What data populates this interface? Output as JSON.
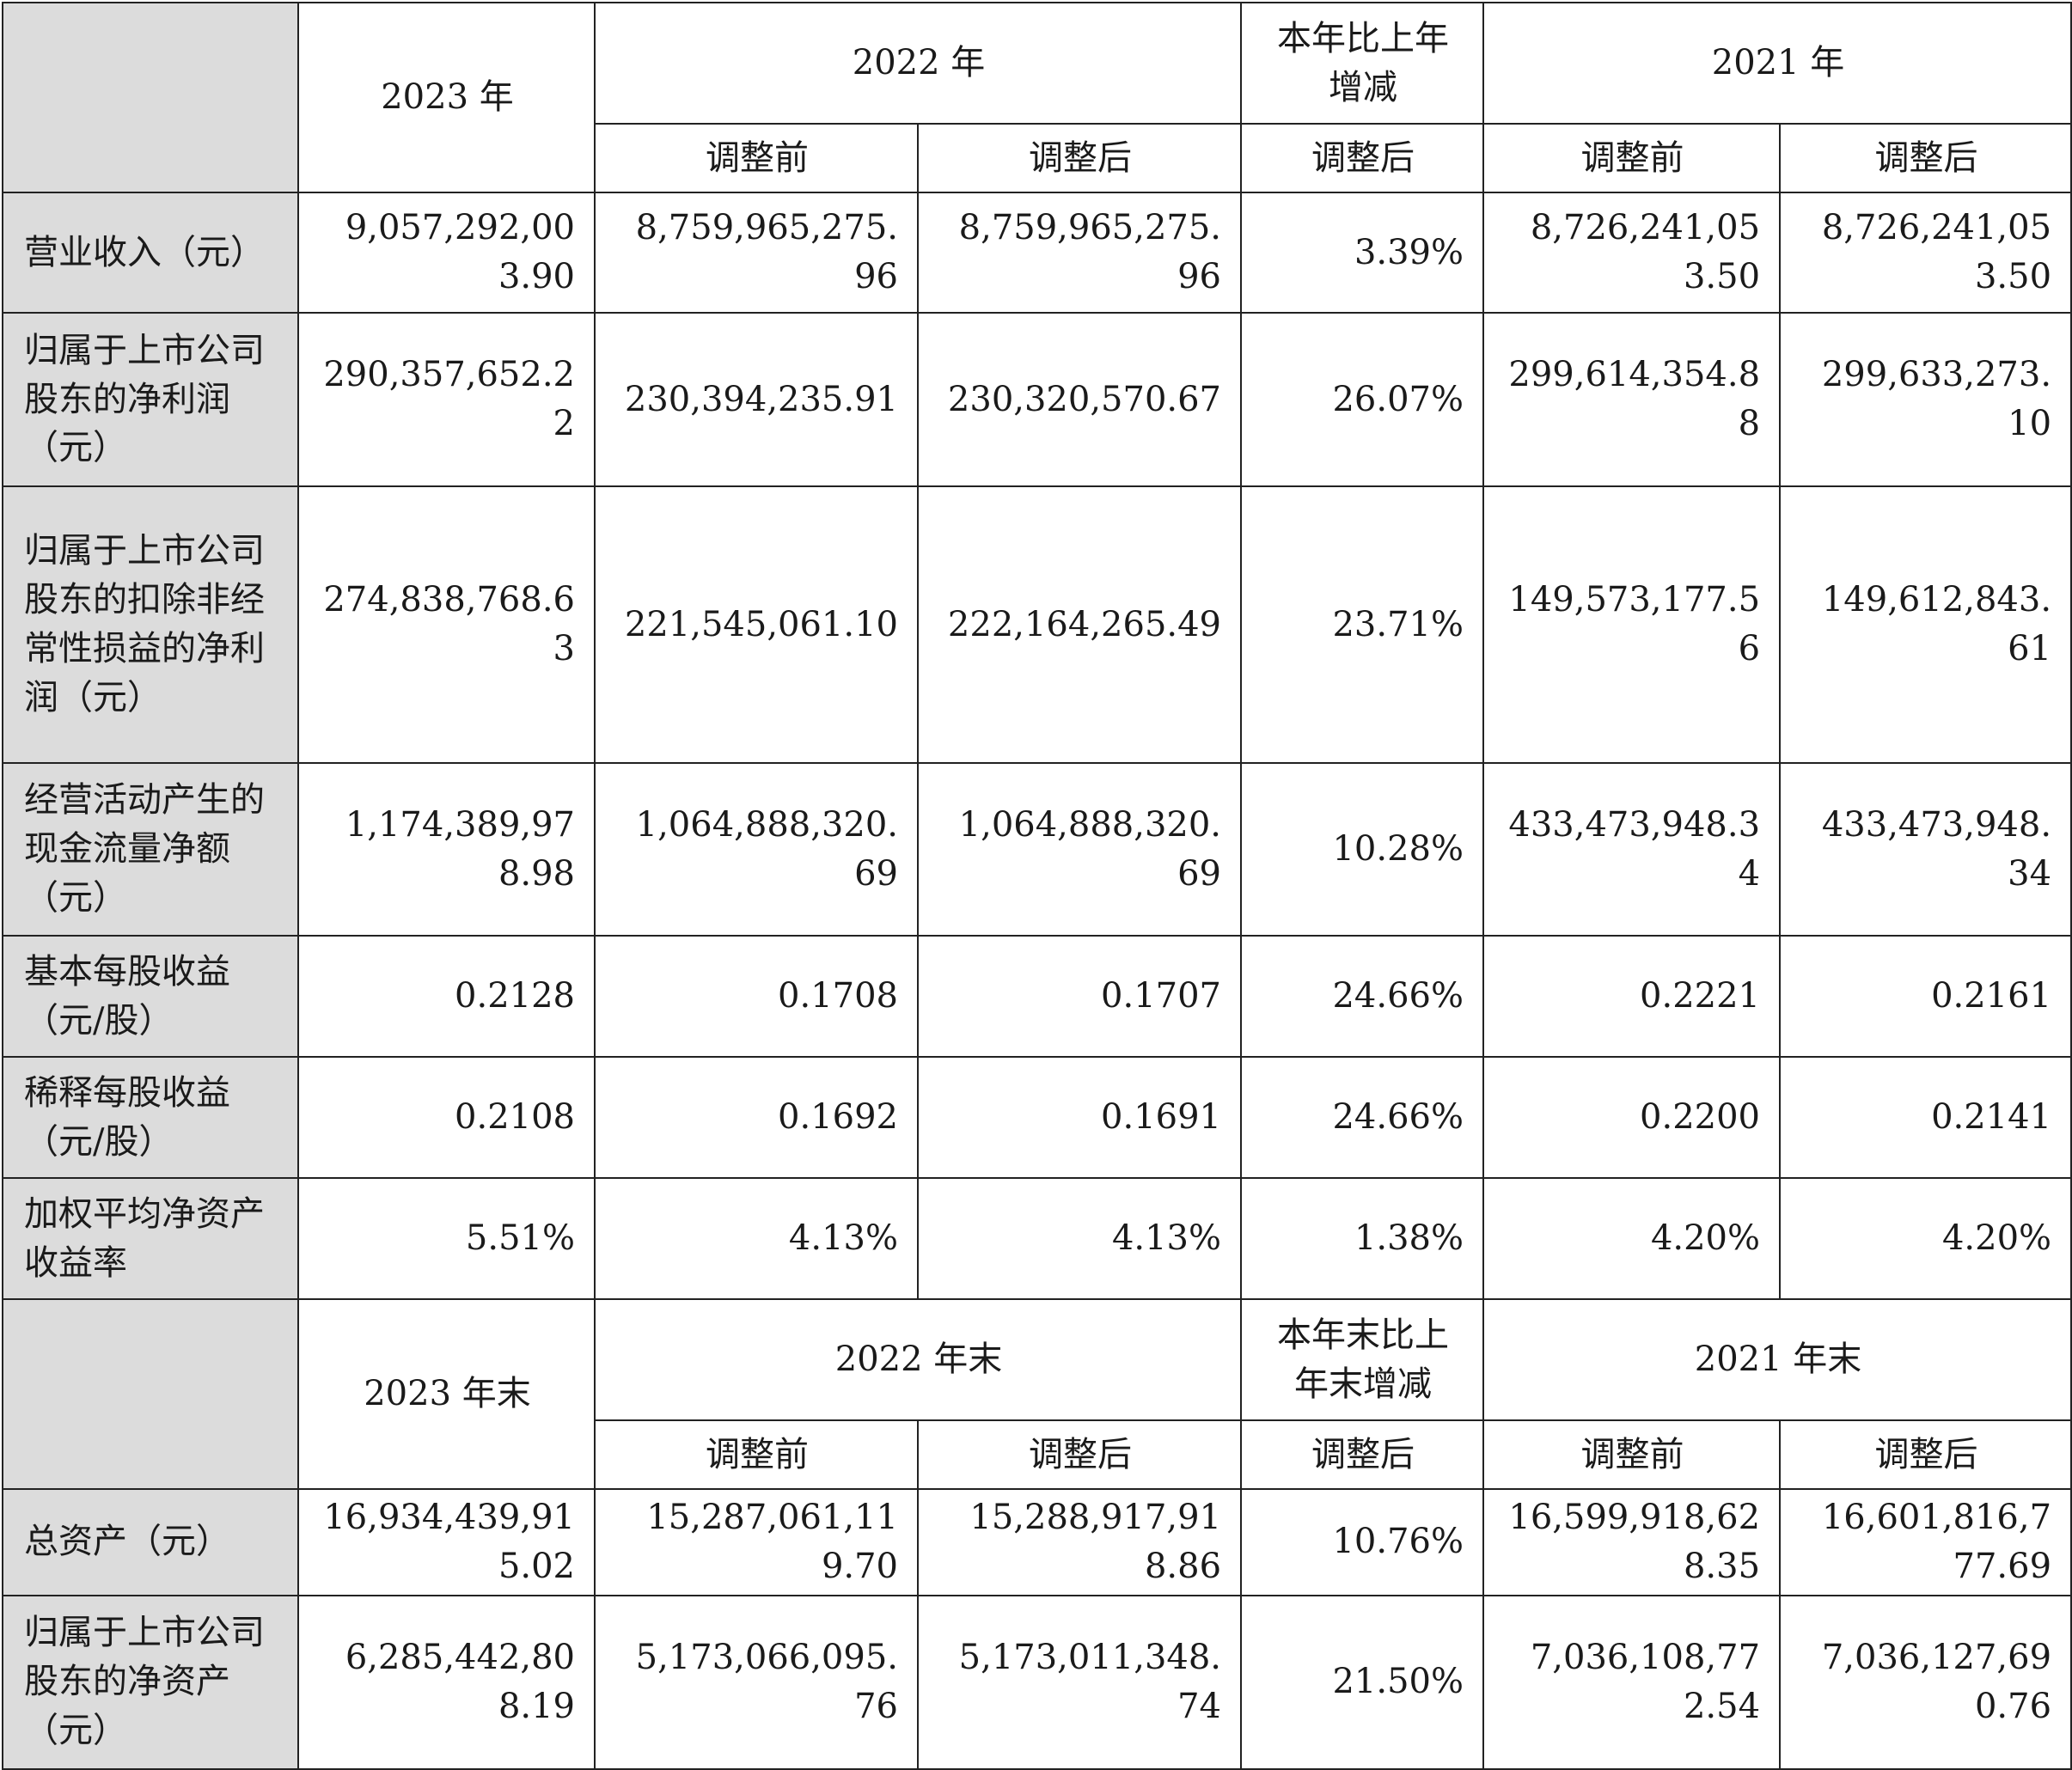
{
  "header1": {
    "y2023": "2023 年",
    "y2022": "2022 年",
    "change": "本年比上年增减",
    "y2021": "2021 年",
    "sub": [
      "调整前",
      "调整后",
      "调整后",
      "调整前",
      "调整后"
    ]
  },
  "rows1": [
    {
      "label": "营业收入（元）",
      "values": [
        "9,057,292,003.90",
        "8,759,965,275.96",
        "8,759,965,275.96",
        "3.39%",
        "8,726,241,053.50",
        "8,726,241,053.50"
      ]
    },
    {
      "label": "归属于上市公司股东的净利润（元）",
      "values": [
        "290,357,652.22",
        "230,394,235.91",
        "230,320,570.67",
        "26.07%",
        "299,614,354.88",
        "299,633,273.10"
      ]
    },
    {
      "label": "归属于上市公司股东的扣除非经常性损益的净利润（元）",
      "values": [
        "274,838,768.63",
        "221,545,061.10",
        "222,164,265.49",
        "23.71%",
        "149,573,177.56",
        "149,612,843.61"
      ]
    },
    {
      "label": "经营活动产生的现金流量净额（元）",
      "values": [
        "1,174,389,978.98",
        "1,064,888,320.69",
        "1,064,888,320.69",
        "10.28%",
        "433,473,948.34",
        "433,473,948.34"
      ]
    },
    {
      "label": "基本每股收益（元/股）",
      "values": [
        "0.2128",
        "0.1708",
        "0.1707",
        "24.66%",
        "0.2221",
        "0.2161"
      ]
    },
    {
      "label": "稀释每股收益（元/股）",
      "values": [
        "0.2108",
        "0.1692",
        "0.1691",
        "24.66%",
        "0.2200",
        "0.2141"
      ]
    },
    {
      "label": "加权平均净资产收益率",
      "values": [
        "5.51%",
        "4.13%",
        "4.13%",
        "1.38%",
        "4.20%",
        "4.20%"
      ]
    }
  ],
  "header2": {
    "y2023": "2023 年末",
    "y2022": "2022 年末",
    "change": "本年末比上年末增减",
    "y2021": "2021 年末",
    "sub": [
      "调整前",
      "调整后",
      "调整后",
      "调整前",
      "调整后"
    ]
  },
  "rows2": [
    {
      "label": "总资产（元）",
      "values": [
        "16,934,439,915.02",
        "15,287,061,119.70",
        "15,288,917,918.86",
        "10.76%",
        "16,599,918,628.35",
        "16,601,816,777.69"
      ]
    },
    {
      "label": "归属于上市公司股东的净资产（元）",
      "values": [
        "6,285,442,808.19",
        "5,173,066,095.76",
        "5,173,011,348.74",
        "21.50%",
        "7,036,108,772.54",
        "7,036,127,690.76"
      ]
    }
  ]
}
